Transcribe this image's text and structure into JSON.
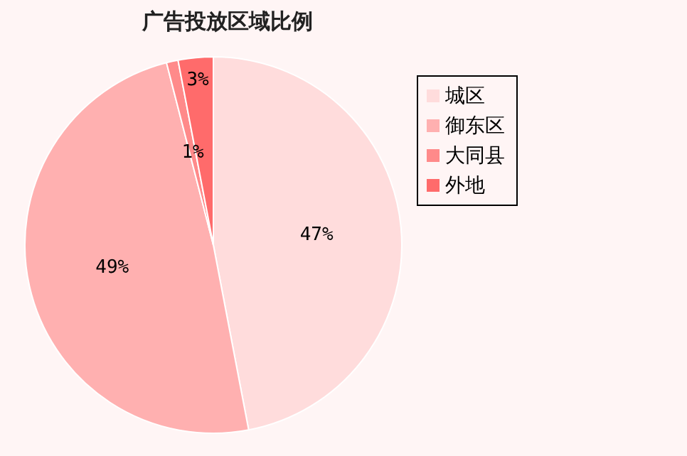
{
  "chart_data": {
    "type": "pie",
    "title": "广告投放区域比例",
    "categories": [
      "城区",
      "御东区",
      "大同县",
      "外地"
    ],
    "values": [
      47,
      49,
      1,
      3
    ],
    "colors": [
      "#ffdcdc",
      "#ffb0b0",
      "#ff8a8a",
      "#ff6b6b"
    ],
    "value_labels": [
      "47%",
      "49%",
      "1%",
      "3%"
    ],
    "legend": "top right"
  }
}
